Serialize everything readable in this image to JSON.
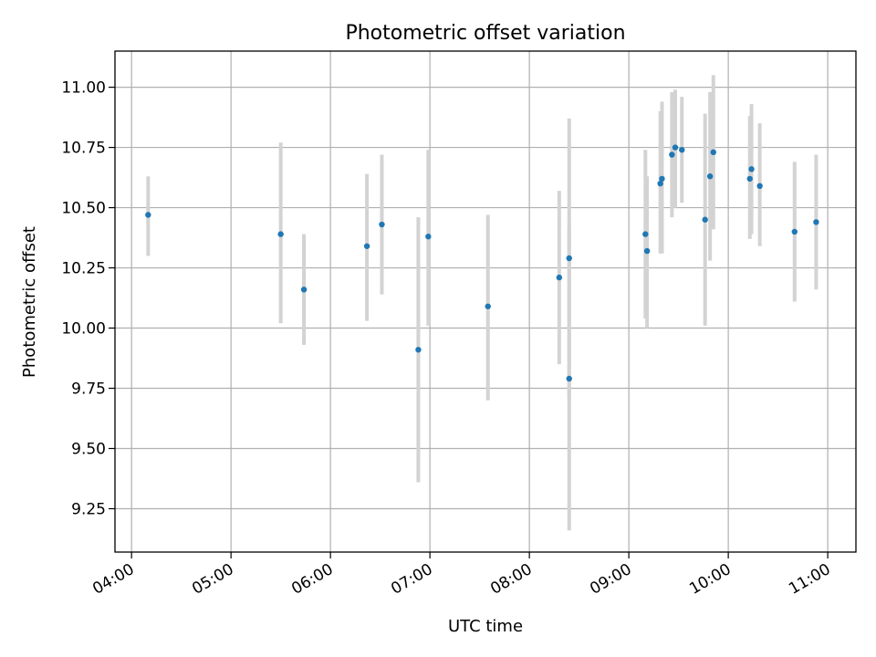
{
  "chart_data": {
    "type": "scatter",
    "title": "Photometric offset variation",
    "xlabel": "UTC time",
    "ylabel": "Photometric offset",
    "xlim": [
      "03:50",
      "11:17"
    ],
    "ylim": [
      9.07,
      11.15
    ],
    "x_ticks": [
      "04:00",
      "05:00",
      "06:00",
      "07:00",
      "08:00",
      "09:00",
      "10:00",
      "11:00"
    ],
    "y_ticks": [
      "9.25",
      "9.50",
      "9.75",
      "10.00",
      "10.25",
      "10.50",
      "10.75",
      "11.00"
    ],
    "grid": true,
    "colors": {
      "marker": "#1f77b4",
      "errorbar": "#d3d3d3",
      "grid": "#b0b0b0"
    },
    "points": [
      {
        "t": "04:10",
        "y": 10.47,
        "lo": 10.3,
        "hi": 10.63
      },
      {
        "t": "05:30",
        "y": 10.39,
        "lo": 10.02,
        "hi": 10.77
      },
      {
        "t": "05:44",
        "y": 10.16,
        "lo": 9.93,
        "hi": 10.39
      },
      {
        "t": "06:22",
        "y": 10.34,
        "lo": 10.03,
        "hi": 10.64
      },
      {
        "t": "06:31",
        "y": 10.43,
        "lo": 10.14,
        "hi": 10.72
      },
      {
        "t": "06:53",
        "y": 9.91,
        "lo": 9.36,
        "hi": 10.46
      },
      {
        "t": "06:59",
        "y": 10.38,
        "lo": 10.01,
        "hi": 10.74
      },
      {
        "t": "07:35",
        "y": 10.09,
        "lo": 9.7,
        "hi": 10.47
      },
      {
        "t": "08:18",
        "y": 10.21,
        "lo": 9.85,
        "hi": 10.57
      },
      {
        "t": "08:24",
        "y": 10.29,
        "lo": 9.71,
        "hi": 10.87
      },
      {
        "t": "08:24",
        "y": 9.79,
        "lo": 9.16,
        "hi": 10.42
      },
      {
        "t": "09:10",
        "y": 10.39,
        "lo": 10.04,
        "hi": 10.74
      },
      {
        "t": "09:11",
        "y": 10.32,
        "lo": 10.0,
        "hi": 10.63
      },
      {
        "t": "09:19",
        "y": 10.6,
        "lo": 10.31,
        "hi": 10.9
      },
      {
        "t": "09:20",
        "y": 10.62,
        "lo": 10.31,
        "hi": 10.94
      },
      {
        "t": "09:26",
        "y": 10.72,
        "lo": 10.46,
        "hi": 10.98
      },
      {
        "t": "09:28",
        "y": 10.75,
        "lo": 10.5,
        "hi": 10.99
      },
      {
        "t": "09:32",
        "y": 10.74,
        "lo": 10.52,
        "hi": 10.96
      },
      {
        "t": "09:46",
        "y": 10.45,
        "lo": 10.01,
        "hi": 10.89
      },
      {
        "t": "09:49",
        "y": 10.63,
        "lo": 10.28,
        "hi": 10.98
      },
      {
        "t": "09:51",
        "y": 10.73,
        "lo": 10.41,
        "hi": 11.05
      },
      {
        "t": "10:13",
        "y": 10.62,
        "lo": 10.37,
        "hi": 10.88
      },
      {
        "t": "10:14",
        "y": 10.66,
        "lo": 10.39,
        "hi": 10.93
      },
      {
        "t": "10:19",
        "y": 10.59,
        "lo": 10.34,
        "hi": 10.85
      },
      {
        "t": "10:40",
        "y": 10.4,
        "lo": 10.11,
        "hi": 10.69
      },
      {
        "t": "10:53",
        "y": 10.44,
        "lo": 10.16,
        "hi": 10.72
      }
    ]
  }
}
